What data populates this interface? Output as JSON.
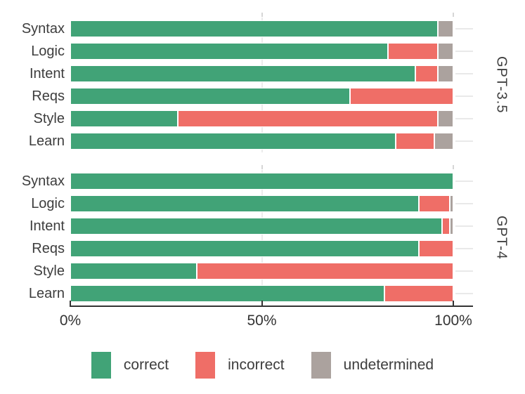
{
  "chart_data": {
    "type": "bar",
    "orientation": "horizontal",
    "stacked": true,
    "unit": "percent",
    "categories": [
      "Syntax",
      "Logic",
      "Intent",
      "Reqs",
      "Style",
      "Learn"
    ],
    "series_names": [
      "correct",
      "incorrect",
      "undetermined"
    ],
    "panels": [
      {
        "label": "GPT-3.5",
        "rows": [
          {
            "category": "Syntax",
            "values": [
              96,
              0,
              4
            ]
          },
          {
            "category": "Logic",
            "values": [
              83,
              13,
              4
            ]
          },
          {
            "category": "Intent",
            "values": [
              90,
              6,
              4
            ]
          },
          {
            "category": "Reqs",
            "values": [
              73,
              27,
              0
            ]
          },
          {
            "category": "Style",
            "values": [
              28,
              68,
              4
            ]
          },
          {
            "category": "Learn",
            "values": [
              85,
              10,
              5
            ]
          }
        ]
      },
      {
        "label": "GPT-4",
        "rows": [
          {
            "category": "Syntax",
            "values": [
              100,
              0,
              0
            ]
          },
          {
            "category": "Logic",
            "values": [
              91,
              8,
              1
            ]
          },
          {
            "category": "Intent",
            "values": [
              97,
              2,
              1
            ]
          },
          {
            "category": "Reqs",
            "values": [
              91,
              9,
              0
            ]
          },
          {
            "category": "Style",
            "values": [
              33,
              67,
              0
            ]
          },
          {
            "category": "Learn",
            "values": [
              82,
              18,
              0
            ]
          }
        ]
      }
    ],
    "x_axis": {
      "range": [
        0,
        100
      ],
      "tick_values": [
        0,
        50,
        100
      ],
      "tick_labels": [
        "0%",
        "50%",
        "100%"
      ],
      "gridline_values": [
        50
      ],
      "minor_top_tick_values": [
        50,
        100
      ]
    },
    "legend": [
      {
        "label": "correct",
        "color": "#41a377"
      },
      {
        "label": "incorrect",
        "color": "#ef6e67"
      },
      {
        "label": "undetermined",
        "color": "#aba29e"
      }
    ]
  },
  "colors": {
    "correct": "#41a377",
    "incorrect": "#ef6e67",
    "undetermined": "#aba29e",
    "axis": "#333333",
    "label_text": "#3d3d3d",
    "gridline": "#ececec",
    "right_tick": "#e9e9e9",
    "background": "#ffffff"
  }
}
